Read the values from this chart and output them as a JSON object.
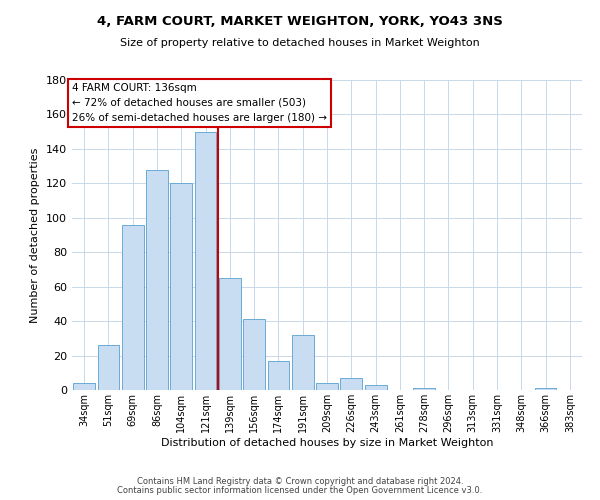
{
  "title": "4, FARM COURT, MARKET WEIGHTON, YORK, YO43 3NS",
  "subtitle": "Size of property relative to detached houses in Market Weighton",
  "xlabel": "Distribution of detached houses by size in Market Weighton",
  "ylabel": "Number of detached properties",
  "bar_labels": [
    "34sqm",
    "51sqm",
    "69sqm",
    "86sqm",
    "104sqm",
    "121sqm",
    "139sqm",
    "156sqm",
    "174sqm",
    "191sqm",
    "209sqm",
    "226sqm",
    "243sqm",
    "261sqm",
    "278sqm",
    "296sqm",
    "313sqm",
    "331sqm",
    "348sqm",
    "366sqm",
    "383sqm"
  ],
  "bar_values": [
    4,
    26,
    96,
    128,
    120,
    150,
    65,
    41,
    17,
    32,
    4,
    7,
    3,
    0,
    1,
    0,
    0,
    0,
    0,
    1,
    0
  ],
  "bar_color": "#c9ddf2",
  "bar_edge_color": "#6aaad4",
  "vline_pos": 5.5,
  "vline_color": "#cc0000",
  "ylim": [
    0,
    180
  ],
  "yticks": [
    0,
    20,
    40,
    60,
    80,
    100,
    120,
    140,
    160,
    180
  ],
  "annotation_title": "4 FARM COURT: 136sqm",
  "annotation_line1": "← 72% of detached houses are smaller (503)",
  "annotation_line2": "26% of semi-detached houses are larger (180) →",
  "annotation_box_color": "#ffffff",
  "annotation_box_edge": "#cc0000",
  "footer1": "Contains HM Land Registry data © Crown copyright and database right 2024.",
  "footer2": "Contains public sector information licensed under the Open Government Licence v3.0.",
  "background_color": "#ffffff",
  "grid_color": "#c8d8ea"
}
